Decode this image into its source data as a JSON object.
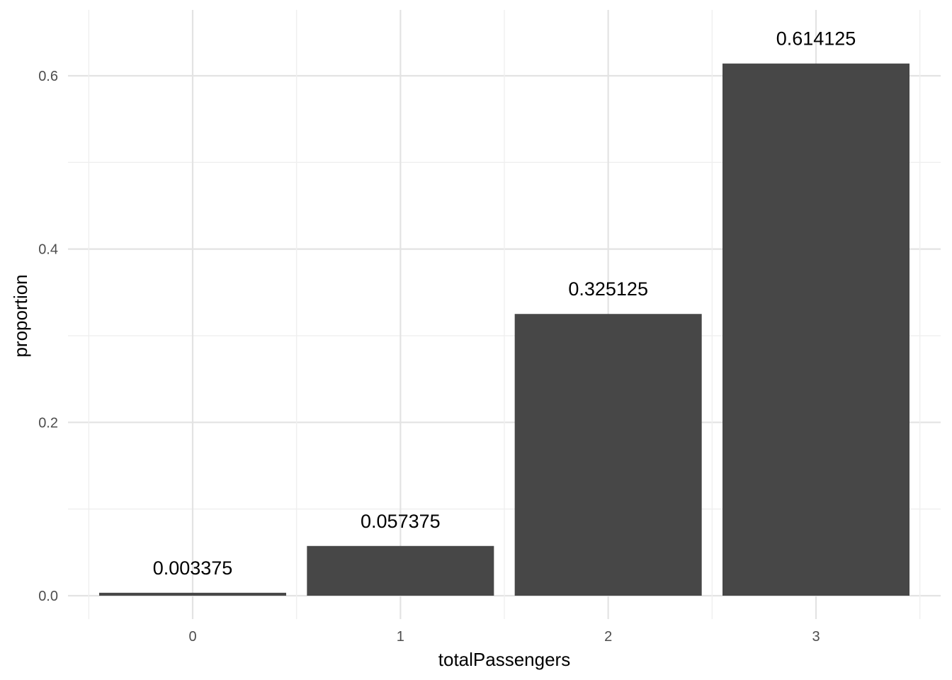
{
  "chart_data": {
    "type": "bar",
    "categories": [
      "0",
      "1",
      "2",
      "3"
    ],
    "values": [
      0.003375,
      0.057375,
      0.325125,
      0.614125
    ],
    "data_labels": [
      "0.003375",
      "0.057375",
      "0.325125",
      "0.614125"
    ],
    "title": "",
    "xlabel": "totalPassengers",
    "ylabel": "proportion",
    "ylim": [
      -0.027,
      0.676
    ],
    "y_ticks": [
      0.0,
      0.2,
      0.4,
      0.6
    ],
    "y_tick_labels": [
      "0.0",
      "0.2",
      "0.4",
      "0.6"
    ],
    "y_minor_ticks": [
      0.1,
      0.3,
      0.5
    ],
    "grid": true,
    "legend": "none",
    "bar_color": "#474747",
    "grid_color": "#e3e3e3"
  }
}
